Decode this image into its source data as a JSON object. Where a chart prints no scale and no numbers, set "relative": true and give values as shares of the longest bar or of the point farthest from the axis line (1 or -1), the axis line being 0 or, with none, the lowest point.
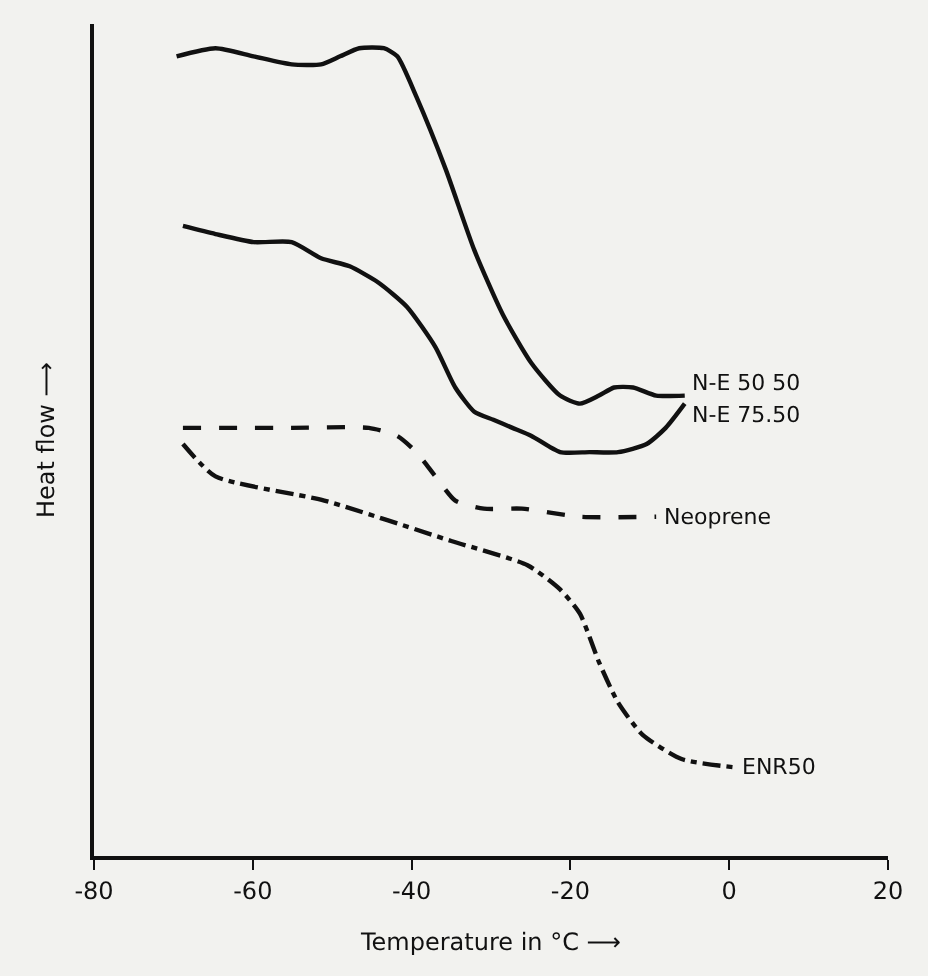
{
  "chart_data": {
    "type": "line",
    "relative": true,
    "xlabel": "Temperature in °C ⟶",
    "ylabel": "Heat flow ⟶",
    "xlim": [
      -80,
      20
    ],
    "xticks": [
      -80,
      -60,
      -40,
      -20,
      0,
      20
    ],
    "grid": false,
    "legend": false,
    "marker": "none",
    "series": [
      {
        "name": "N-E 50 50",
        "color": "#111111",
        "line_style": "solid",
        "x": [
          -69.6,
          -64.7,
          -59.9,
          -55.1,
          -51.4,
          -49.0,
          -46.6,
          -43.5,
          -41.8,
          -39.4,
          -35.7,
          -32.1,
          -28.5,
          -24.9,
          -21.3,
          -18.8,
          -16.4,
          -14.5,
          -12.1,
          -9.2,
          -5.6
        ],
        "values": [
          0.99,
          1.0,
          0.99,
          0.98,
          0.98,
          0.99,
          1.0,
          1.0,
          0.99,
          0.94,
          0.85,
          0.75,
          0.67,
          0.61,
          0.57,
          0.56,
          0.57,
          0.58,
          0.58,
          0.57,
          0.57
        ]
      },
      {
        "name": "N-E 75.50",
        "color": "#111111",
        "line_style": "solid",
        "x": [
          -68.8,
          -64.7,
          -59.9,
          -55.1,
          -51.4,
          -47.8,
          -44.2,
          -40.6,
          -37.0,
          -34.5,
          -32.1,
          -29.7,
          -27.3,
          -24.9,
          -21.3,
          -17.6,
          -14.0,
          -10.4,
          -8.0,
          -5.6
        ],
        "values": [
          0.78,
          0.77,
          0.76,
          0.76,
          0.74,
          0.73,
          0.71,
          0.68,
          0.63,
          0.58,
          0.55,
          0.54,
          0.53,
          0.52,
          0.5,
          0.5,
          0.5,
          0.51,
          0.53,
          0.56
        ]
      },
      {
        "name": "Neoprene",
        "color": "#111111",
        "line_style": "dashed",
        "x": [
          -68.8,
          -55.1,
          -45.4,
          -41.8,
          -39.4,
          -37.0,
          -34.5,
          -30.9,
          -26.1,
          -18.8,
          -9.2
        ],
        "values": [
          0.53,
          0.53,
          0.53,
          0.52,
          0.5,
          0.47,
          0.44,
          0.43,
          0.43,
          0.42,
          0.42
        ]
      },
      {
        "name": "ENR50",
        "color": "#111111",
        "line_style": "dashdot",
        "x": [
          -68.8,
          -64.7,
          -51.0,
          -35.0,
          -25.4,
          -21.3,
          -18.8,
          -16.4,
          -14.0,
          -10.9,
          -6.0,
          0.5
        ],
        "values": [
          0.51,
          0.47,
          0.44,
          0.39,
          0.36,
          0.33,
          0.3,
          0.24,
          0.19,
          0.15,
          0.12,
          0.11
        ]
      }
    ]
  }
}
